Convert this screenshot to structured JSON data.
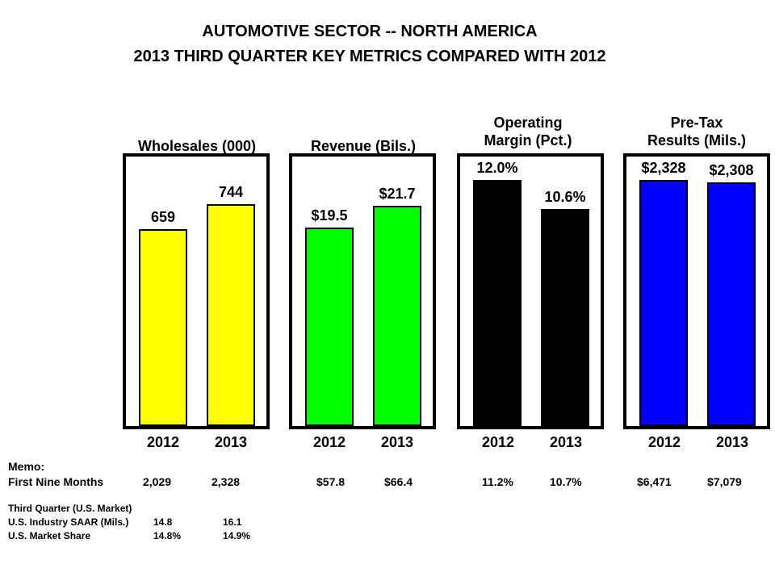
{
  "title": {
    "line1": "AUTOMOTIVE SECTOR -- NORTH AMERICA",
    "line2": "2013 THIRD QUARTER KEY METRICS COMPARED WITH 2012"
  },
  "chart_data": [
    {
      "type": "bar",
      "title": "Wholesales (000)",
      "categories": [
        "2012",
        "2013"
      ],
      "values": [
        659,
        744
      ],
      "labels": [
        "659",
        "744"
      ],
      "ylim": [
        0,
        892
      ],
      "color": "#ffff00"
    },
    {
      "type": "bar",
      "title": "Revenue (Bils.)",
      "categories": [
        "2012",
        "2013"
      ],
      "values": [
        19.5,
        21.7
      ],
      "labels": [
        "$19.5",
        "$21.7"
      ],
      "ylim": [
        0,
        26.2
      ],
      "color": "#00ff00"
    },
    {
      "type": "bar",
      "title_lines": [
        "Operating",
        "Margin (Pct.)"
      ],
      "categories": [
        "2012",
        "2013"
      ],
      "values": [
        12.0,
        10.6
      ],
      "labels": [
        "12.0%",
        "10.6%"
      ],
      "ylim": [
        0,
        13.0
      ],
      "color": "#000000"
    },
    {
      "type": "bar",
      "title_lines": [
        "Pre-Tax",
        "Results (Mils.)"
      ],
      "categories": [
        "2012",
        "2013"
      ],
      "values": [
        2328,
        2308
      ],
      "labels": [
        "$2,328",
        "$2,308"
      ],
      "ylim": [
        0,
        2520
      ],
      "color": "#0000ff"
    }
  ],
  "memo": {
    "heading": "Memo:",
    "row_label": "First Nine Months",
    "values": [
      "2,029",
      "2,328",
      "$57.8",
      "$66.4",
      "11.2%",
      "10.7%",
      "$6,471",
      "$7,079"
    ]
  },
  "third_quarter": {
    "heading": "Third Quarter (U.S. Market)",
    "saar_label": "U.S. Industry SAAR (Mils.)",
    "saar_2012": "14.8",
    "saar_2013": "16.1",
    "share_label": "U.S. Market Share",
    "share_2012": "14.8%",
    "share_2013": "14.9%"
  }
}
